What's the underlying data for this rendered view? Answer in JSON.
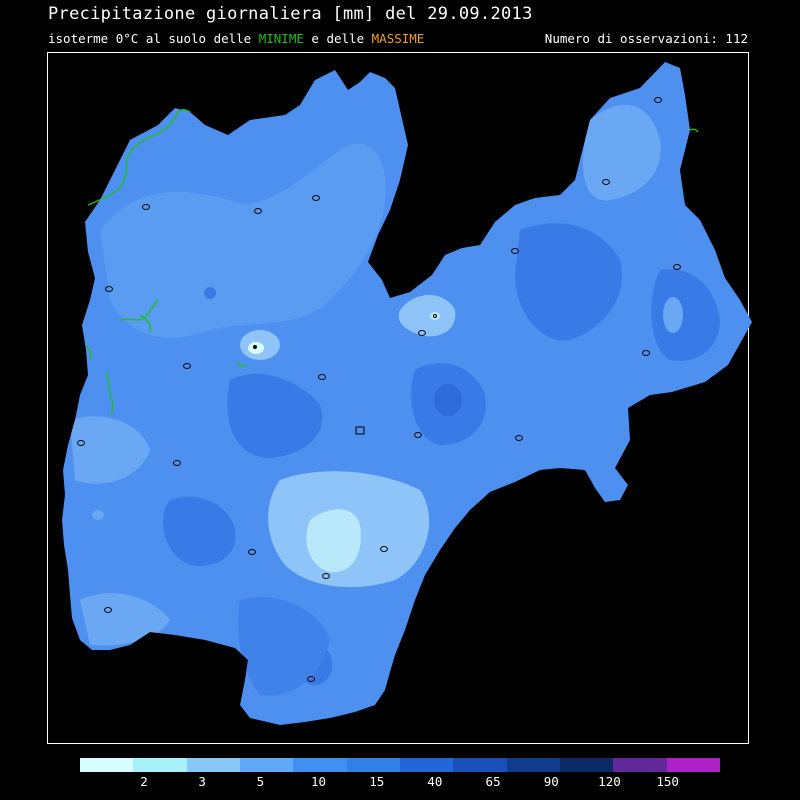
{
  "header": {
    "title": "Precipitazione giornaliera [mm] del 29.09.2013",
    "subtitle_prefix": "isoterme 0°C al suolo delle",
    "subtitle_min": "MINIME",
    "subtitle_mid": "e delle",
    "subtitle_max": "MASSIME",
    "obs_label": "Numero di osservazioni:",
    "obs_count": "112"
  },
  "legend": {
    "colors": [
      "#d8ffff",
      "#a8f0f8",
      "#88c8f8",
      "#60a8f8",
      "#4090f0",
      "#3080e8",
      "#2068d8",
      "#1850b8",
      "#103c90",
      "#0c2a68",
      "#602898",
      "#b020c8"
    ],
    "labels": [
      "2",
      "3",
      "5",
      "10",
      "15",
      "40",
      "65",
      "90",
      "120",
      "150"
    ]
  },
  "colors": {
    "background": "#000000",
    "isotherm_min": "#1fbf1f",
    "isotherm_max": "#f0a020",
    "region_base": "#4d90f0",
    "region_light": "#6aa8f4",
    "region_lighter": "#8ec4f8",
    "region_lightest": "#b8e8fa",
    "region_dark": "#3a7ae6"
  }
}
